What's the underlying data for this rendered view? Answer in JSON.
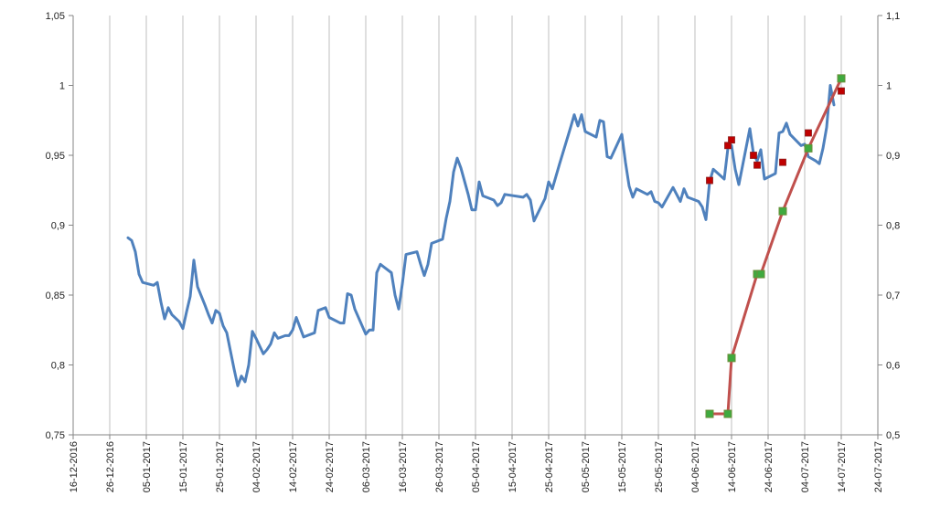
{
  "chart_data": {
    "type": "line",
    "title": "",
    "xlabel": "",
    "ylabel": "",
    "x_axis": {
      "type": "date",
      "range": [
        "2016-12-16",
        "2017-07-24"
      ],
      "tick_labels": [
        "16-12-2016",
        "26-12-2016",
        "05-01-2017",
        "15-01-2017",
        "25-01-2017",
        "04-02-2017",
        "14-02-2017",
        "24-02-2017",
        "06-03-2017",
        "16-03-2017",
        "26-03-2017",
        "05-04-2017",
        "15-04-2017",
        "25-04-2017",
        "05-05-2017",
        "15-05-2017",
        "25-05-2017",
        "04-06-2017",
        "14-06-2017",
        "24-06-2017",
        "04-07-2017",
        "14-07-2017",
        "24-07-2017"
      ]
    },
    "y_left": {
      "range": [
        0.75,
        1.05
      ],
      "tick_labels": [
        "0,75",
        "0,8",
        "0,85",
        "0,9",
        "0,95",
        "1",
        "1,05"
      ]
    },
    "y_right": {
      "range": [
        0.5,
        1.1
      ],
      "tick_labels": [
        "0,5",
        "0,6",
        "0,7",
        "0,8",
        "0,9",
        "1",
        "1,1"
      ]
    },
    "grid": "vertical",
    "legend": "none",
    "colors": {
      "line_blue": "#4f81bd",
      "line_red": "#c0504d",
      "marker_red": "#c00000",
      "marker_green": "#3faa3f",
      "grid": "#bfbfbf",
      "axis": "#868686"
    },
    "series": [
      {
        "axis": "left",
        "style": "line",
        "points": [
          [
            "2016-12-31",
            0.891
          ],
          [
            "2017-01-01",
            0.889
          ],
          [
            "2017-01-02",
            0.881
          ],
          [
            "2017-01-03",
            0.865
          ],
          [
            "2017-01-04",
            0.859
          ],
          [
            "2017-01-07",
            0.857
          ],
          [
            "2017-01-08",
            0.859
          ],
          [
            "2017-01-09",
            0.845
          ],
          [
            "2017-01-10",
            0.833
          ],
          [
            "2017-01-11",
            0.841
          ],
          [
            "2017-01-12",
            0.836
          ],
          [
            "2017-01-14",
            0.831
          ],
          [
            "2017-01-15",
            0.826
          ],
          [
            "2017-01-16",
            0.838
          ],
          [
            "2017-01-17",
            0.849
          ],
          [
            "2017-01-18",
            0.875
          ],
          [
            "2017-01-19",
            0.856
          ],
          [
            "2017-01-21",
            0.843
          ],
          [
            "2017-01-22",
            0.836
          ],
          [
            "2017-01-23",
            0.83
          ],
          [
            "2017-01-24",
            0.839
          ],
          [
            "2017-01-25",
            0.837
          ],
          [
            "2017-01-26",
            0.828
          ],
          [
            "2017-01-27",
            0.823
          ],
          [
            "2017-01-28",
            0.81
          ],
          [
            "2017-01-29",
            0.797
          ],
          [
            "2017-01-30",
            0.785
          ],
          [
            "2017-01-31",
            0.792
          ],
          [
            "2017-02-01",
            0.788
          ],
          [
            "2017-02-02",
            0.8
          ],
          [
            "2017-02-03",
            0.824
          ],
          [
            "2017-02-04",
            0.819
          ],
          [
            "2017-02-06",
            0.808
          ],
          [
            "2017-02-07",
            0.811
          ],
          [
            "2017-02-08",
            0.815
          ],
          [
            "2017-02-09",
            0.823
          ],
          [
            "2017-02-10",
            0.819
          ],
          [
            "2017-02-12",
            0.821
          ],
          [
            "2017-02-13",
            0.821
          ],
          [
            "2017-02-14",
            0.825
          ],
          [
            "2017-02-15",
            0.834
          ],
          [
            "2017-02-16",
            0.827
          ],
          [
            "2017-02-17",
            0.82
          ],
          [
            "2017-02-20",
            0.823
          ],
          [
            "2017-02-21",
            0.839
          ],
          [
            "2017-02-23",
            0.841
          ],
          [
            "2017-02-24",
            0.834
          ],
          [
            "2017-02-27",
            0.83
          ],
          [
            "2017-02-28",
            0.83
          ],
          [
            "2017-03-01",
            0.851
          ],
          [
            "2017-03-02",
            0.85
          ],
          [
            "2017-03-03",
            0.84
          ],
          [
            "2017-03-06",
            0.822
          ],
          [
            "2017-03-07",
            0.825
          ],
          [
            "2017-03-08",
            0.825
          ],
          [
            "2017-03-09",
            0.866
          ],
          [
            "2017-03-10",
            0.872
          ],
          [
            "2017-03-11",
            0.87
          ],
          [
            "2017-03-13",
            0.866
          ],
          [
            "2017-03-14",
            0.85
          ],
          [
            "2017-03-15",
            0.84
          ],
          [
            "2017-03-16",
            0.858
          ],
          [
            "2017-03-17",
            0.879
          ],
          [
            "2017-03-20",
            0.881
          ],
          [
            "2017-03-21",
            0.872
          ],
          [
            "2017-03-22",
            0.864
          ],
          [
            "2017-03-23",
            0.872
          ],
          [
            "2017-03-24",
            0.887
          ],
          [
            "2017-03-25",
            0.888
          ],
          [
            "2017-03-27",
            0.89
          ],
          [
            "2017-03-28",
            0.905
          ],
          [
            "2017-03-29",
            0.917
          ],
          [
            "2017-03-30",
            0.938
          ],
          [
            "2017-03-31",
            0.948
          ],
          [
            "2017-04-01",
            0.941
          ],
          [
            "2017-04-03",
            0.922
          ],
          [
            "2017-04-04",
            0.911
          ],
          [
            "2017-04-05",
            0.911
          ],
          [
            "2017-04-06",
            0.931
          ],
          [
            "2017-04-07",
            0.921
          ],
          [
            "2017-04-10",
            0.918
          ],
          [
            "2017-04-11",
            0.914
          ],
          [
            "2017-04-12",
            0.916
          ],
          [
            "2017-04-13",
            0.922
          ],
          [
            "2017-04-18",
            0.92
          ],
          [
            "2017-04-19",
            0.922
          ],
          [
            "2017-04-20",
            0.918
          ],
          [
            "2017-04-21",
            0.903
          ],
          [
            "2017-04-24",
            0.919
          ],
          [
            "2017-04-25",
            0.931
          ],
          [
            "2017-04-26",
            0.926
          ],
          [
            "2017-04-27",
            0.935
          ],
          [
            "2017-04-28",
            0.944
          ],
          [
            "2017-05-01",
            0.97
          ],
          [
            "2017-05-02",
            0.979
          ],
          [
            "2017-05-03",
            0.971
          ],
          [
            "2017-05-04",
            0.979
          ],
          [
            "2017-05-05",
            0.967
          ],
          [
            "2017-05-08",
            0.963
          ],
          [
            "2017-05-09",
            0.975
          ],
          [
            "2017-05-10",
            0.974
          ],
          [
            "2017-05-11",
            0.949
          ],
          [
            "2017-05-12",
            0.948
          ],
          [
            "2017-05-15",
            0.965
          ],
          [
            "2017-05-16",
            0.945
          ],
          [
            "2017-05-17",
            0.928
          ],
          [
            "2017-05-18",
            0.92
          ],
          [
            "2017-05-19",
            0.926
          ],
          [
            "2017-05-22",
            0.922
          ],
          [
            "2017-05-23",
            0.924
          ],
          [
            "2017-05-24",
            0.917
          ],
          [
            "2017-05-25",
            0.916
          ],
          [
            "2017-05-26",
            0.913
          ],
          [
            "2017-05-29",
            0.927
          ],
          [
            "2017-05-31",
            0.917
          ],
          [
            "2017-06-01",
            0.926
          ],
          [
            "2017-06-02",
            0.92
          ],
          [
            "2017-06-05",
            0.917
          ],
          [
            "2017-06-06",
            0.913
          ],
          [
            "2017-06-07",
            0.904
          ],
          [
            "2017-06-08",
            0.931
          ],
          [
            "2017-06-09",
            0.94
          ],
          [
            "2017-06-12",
            0.933
          ],
          [
            "2017-06-13",
            0.955
          ],
          [
            "2017-06-14",
            0.957
          ],
          [
            "2017-06-15",
            0.94
          ],
          [
            "2017-06-16",
            0.929
          ],
          [
            "2017-06-19",
            0.969
          ],
          [
            "2017-06-20",
            0.951
          ],
          [
            "2017-06-21",
            0.946
          ],
          [
            "2017-06-22",
            0.954
          ],
          [
            "2017-06-23",
            0.933
          ],
          [
            "2017-06-26",
            0.937
          ],
          [
            "2017-06-27",
            0.966
          ],
          [
            "2017-06-28",
            0.967
          ],
          [
            "2017-06-29",
            0.973
          ],
          [
            "2017-06-30",
            0.965
          ],
          [
            "2017-07-03",
            0.957
          ],
          [
            "2017-07-04",
            0.958
          ],
          [
            "2017-07-05",
            0.949
          ],
          [
            "2017-07-07",
            0.946
          ],
          [
            "2017-07-08",
            0.944
          ],
          [
            "2017-07-09",
            0.955
          ],
          [
            "2017-07-10",
            0.97
          ],
          [
            "2017-07-11",
            1.0
          ],
          [
            "2017-07-12",
            0.986
          ]
        ]
      },
      {
        "axis": "right",
        "style": "line-markers",
        "points": [
          [
            "2017-06-08",
            0.53
          ],
          [
            "2017-06-13",
            0.53
          ],
          [
            "2017-06-14",
            0.61
          ],
          [
            "2017-06-21",
            0.73
          ],
          [
            "2017-06-22",
            0.73
          ],
          [
            "2017-06-28",
            0.82
          ],
          [
            "2017-07-05",
            0.91
          ],
          [
            "2017-07-14",
            1.01
          ]
        ]
      },
      {
        "axis": "left",
        "style": "markers",
        "points": [
          [
            "2017-06-08",
            0.932
          ],
          [
            "2017-06-13",
            0.957
          ],
          [
            "2017-06-14",
            0.961
          ],
          [
            "2017-06-20",
            0.95
          ],
          [
            "2017-06-21",
            0.943
          ],
          [
            "2017-06-28",
            0.945
          ],
          [
            "2017-07-05",
            0.966
          ],
          [
            "2017-07-14",
            0.996
          ]
        ]
      }
    ]
  }
}
